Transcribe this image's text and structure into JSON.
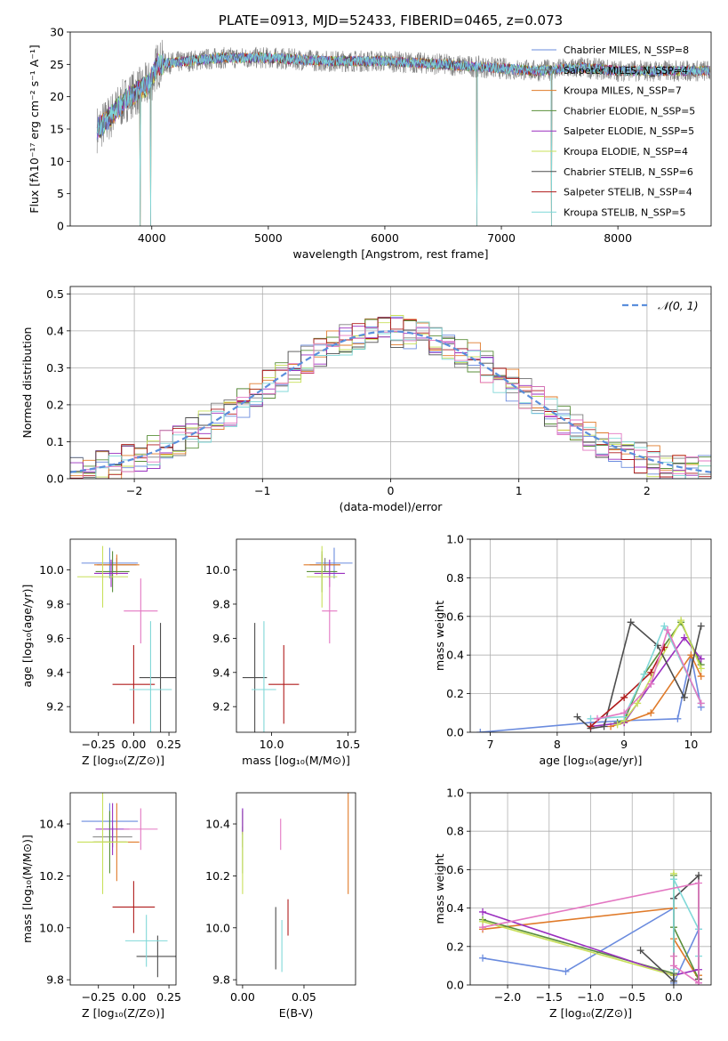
{
  "colors": {
    "chabrier_miles": "#6a8bde",
    "salpeter_miles": "#7f7f7f",
    "kroupa_miles": "#e07b2a",
    "chabrier_elodie": "#5a8f3a",
    "salpeter_elodie": "#9a2fbf",
    "kroupa_elodie": "#c8e05a",
    "chabrier_stelib": "#4d4d4d",
    "salpeter_stelib": "#b01c1c",
    "kroupa_stelib": "#80d8d8",
    "pink": "#e377c2",
    "gaussian": "#5b8fdc"
  },
  "chart_data": [
    {
      "id": "spectrum",
      "type": "line",
      "title": "PLATE=0913, MJD=52433, FIBERID=0465, z=0.073",
      "xlabel": "wavelength [Angstrom, rest frame]",
      "ylabel": "Flux [fλ10⁻¹⁷ erg cm⁻² s⁻¹ A⁻¹]",
      "xlim": [
        3300,
        8800
      ],
      "ylim": [
        0,
        30
      ],
      "xticks": [
        "4000",
        "5000",
        "6000",
        "7000",
        "8000"
      ],
      "yticks": [
        "0",
        "5",
        "10",
        "15",
        "20",
        "25",
        "30"
      ],
      "legend_position": "right",
      "legend": [
        "Chabrier MILES, N_SSP=8",
        "Salpeter MILES, N_SSP=4",
        "Kroupa MILES, N_SSP=7",
        "Chabrier ELODIE, N_SSP=5",
        "Salpeter ELODIE, N_SSP=5",
        "Kroupa ELODIE, N_SSP=4",
        "Chabrier STELIB, N_SSP=6",
        "Salpeter STELIB, N_SSP=4",
        "Kroupa STELIB, N_SSP=5"
      ],
      "continuum": [
        [
          3530,
          15
        ],
        [
          3600,
          16
        ],
        [
          3700,
          18
        ],
        [
          3800,
          20
        ],
        [
          3900,
          21
        ],
        [
          3980,
          22
        ],
        [
          4050,
          25
        ],
        [
          4300,
          25.5
        ],
        [
          4600,
          26
        ],
        [
          5000,
          26
        ],
        [
          5500,
          25.5
        ],
        [
          6000,
          25.5
        ],
        [
          6500,
          25
        ],
        [
          6900,
          24.5
        ],
        [
          7300,
          24
        ],
        [
          7700,
          24.5
        ],
        [
          8000,
          24
        ],
        [
          8300,
          24
        ],
        [
          8790,
          24
        ]
      ],
      "absorption_dips": [
        [
          3900,
          0
        ],
        [
          3990,
          0
        ],
        [
          6790,
          0
        ],
        [
          7430,
          0
        ]
      ]
    },
    {
      "id": "residuals",
      "type": "line",
      "xlabel": "(data-model)/error",
      "ylabel": "Normed distribution",
      "xlim": [
        -2.5,
        2.5
      ],
      "ylim": [
        0,
        0.52
      ],
      "xticks": [
        "−2",
        "−1",
        "0",
        "1",
        "2"
      ],
      "yticks": [
        "0.0",
        "0.1",
        "0.2",
        "0.3",
        "0.4",
        "0.5"
      ],
      "grid": true,
      "legend_position": "top-right",
      "legend": [
        "𝒩(0, 1)"
      ],
      "gaussian": {
        "mu": 0,
        "sigma": 1
      }
    },
    {
      "id": "age_vs_Z",
      "type": "scatter",
      "xlabel": "Z [log₁₀(Z/Z⊙)]",
      "ylabel": "age  [log₁₀(age/yr)]",
      "xlim": [
        -0.45,
        0.3
      ],
      "ylim": [
        9.05,
        10.18
      ],
      "xticks": [
        "−0.25",
        "0.00",
        "0.25"
      ],
      "yticks": [
        "9.2",
        "9.4",
        "9.6",
        "9.8",
        "10.0"
      ],
      "points": [
        {
          "x": -0.17,
          "y": 10.04,
          "ex": 0.2,
          "ey": 0.09,
          "c": "chabrier_miles"
        },
        {
          "x": -0.12,
          "y": 10.03,
          "ex": 0.14,
          "ey": 0.04,
          "c": "salpeter_miles"
        },
        {
          "x": -0.12,
          "y": 10.03,
          "ex": 0.16,
          "ey": 0.06,
          "c": "kroupa_miles"
        },
        {
          "x": -0.15,
          "y": 9.99,
          "ex": 0.12,
          "ey": 0.12,
          "c": "chabrier_elodie"
        },
        {
          "x": -0.16,
          "y": 9.98,
          "ex": 0.12,
          "ey": 0.08,
          "c": "salpeter_elodie"
        },
        {
          "x": -0.22,
          "y": 9.96,
          "ex": 0.18,
          "ey": 0.18,
          "c": "kroupa_elodie"
        },
        {
          "x": 0.19,
          "y": 9.37,
          "ex": 0.15,
          "ey": 0.32,
          "c": "chabrier_stelib"
        },
        {
          "x": 0.0,
          "y": 9.33,
          "ex": 0.15,
          "ey": 0.23,
          "c": "salpeter_stelib"
        },
        {
          "x": 0.12,
          "y": 9.3,
          "ex": 0.15,
          "ey": 0.4,
          "c": "kroupa_stelib"
        },
        {
          "x": 0.05,
          "y": 9.76,
          "ex": 0.12,
          "ey": 0.19,
          "c": "pink"
        }
      ]
    },
    {
      "id": "age_vs_mass",
      "type": "scatter",
      "xlabel": "mass [log₁₀(M/M⊙)]",
      "ylabel": "",
      "xlim": [
        9.77,
        10.55
      ],
      "ylim": [
        9.05,
        10.18
      ],
      "xticks": [
        "10.0",
        "10.5"
      ],
      "yticks": [
        "9.2",
        "9.4",
        "9.6",
        "9.8",
        "10.0"
      ],
      "points": [
        {
          "x": 10.41,
          "y": 10.04,
          "ex": 0.12,
          "ey": 0.09,
          "c": "chabrier_miles"
        },
        {
          "x": 10.35,
          "y": 10.03,
          "ex": 0.1,
          "ey": 0.04,
          "c": "salpeter_miles"
        },
        {
          "x": 10.33,
          "y": 10.03,
          "ex": 0.12,
          "ey": 0.06,
          "c": "kroupa_miles"
        },
        {
          "x": 10.33,
          "y": 9.99,
          "ex": 0.1,
          "ey": 0.12,
          "c": "chabrier_elodie"
        },
        {
          "x": 10.38,
          "y": 9.98,
          "ex": 0.1,
          "ey": 0.08,
          "c": "salpeter_elodie"
        },
        {
          "x": 10.33,
          "y": 9.96,
          "ex": 0.1,
          "ey": 0.18,
          "c": "kroupa_elodie"
        },
        {
          "x": 9.89,
          "y": 9.37,
          "ex": 0.08,
          "ey": 0.32,
          "c": "chabrier_stelib"
        },
        {
          "x": 10.08,
          "y": 9.33,
          "ex": 0.1,
          "ey": 0.23,
          "c": "salpeter_stelib"
        },
        {
          "x": 9.95,
          "y": 9.3,
          "ex": 0.08,
          "ey": 0.4,
          "c": "kroupa_stelib"
        },
        {
          "x": 10.38,
          "y": 9.76,
          "ex": 0.05,
          "ey": 0.19,
          "c": "pink"
        }
      ]
    },
    {
      "id": "mass_weight_vs_age",
      "type": "line",
      "xlabel": "age  [log₁₀(age/yr)]",
      "ylabel": "mass weight",
      "xlim": [
        6.7,
        10.3
      ],
      "ylim": [
        0,
        1.0
      ],
      "xticks": [
        "7",
        "8",
        "9",
        "10"
      ],
      "yticks": [
        "0.0",
        "0.2",
        "0.4",
        "0.6",
        "0.8",
        "1.0"
      ],
      "grid": true,
      "series": [
        {
          "c": "chabrier_miles",
          "x": [
            6.85,
            8.5,
            9.0,
            9.8,
            10.0,
            10.15
          ],
          "y": [
            0.0,
            0.05,
            0.06,
            0.07,
            0.4,
            0.13
          ]
        },
        {
          "c": "kroupa_miles",
          "x": [
            8.8,
            9.0,
            9.4,
            10.0,
            10.15
          ],
          "y": [
            0.03,
            0.05,
            0.1,
            0.4,
            0.29
          ]
        },
        {
          "c": "chabrier_elodie",
          "x": [
            8.9,
            9.0,
            9.3,
            9.85,
            10.15
          ],
          "y": [
            0.05,
            0.06,
            0.3,
            0.57,
            0.35
          ]
        },
        {
          "c": "salpeter_elodie",
          "x": [
            8.5,
            9.0,
            9.4,
            9.9,
            10.15
          ],
          "y": [
            0.03,
            0.05,
            0.25,
            0.49,
            0.38
          ]
        },
        {
          "c": "kroupa_elodie",
          "x": [
            8.9,
            9.0,
            9.2,
            9.85,
            10.15
          ],
          "y": [
            0.04,
            0.06,
            0.15,
            0.58,
            0.33
          ]
        },
        {
          "c": "chabrier_stelib",
          "x": [
            8.3,
            8.5,
            8.7,
            9.1,
            9.5,
            9.9,
            10.15
          ],
          "y": [
            0.08,
            0.02,
            0.03,
            0.57,
            0.45,
            0.18,
            0.55
          ]
        },
        {
          "c": "salpeter_stelib",
          "x": [
            8.5,
            9.0,
            9.4,
            9.6
          ],
          "y": [
            0.03,
            0.18,
            0.31,
            0.44
          ]
        },
        {
          "c": "kroupa_stelib",
          "x": [
            8.5,
            9.0,
            9.3,
            9.6,
            10.15
          ],
          "y": [
            0.07,
            0.08,
            0.3,
            0.55,
            0.15
          ]
        },
        {
          "c": "pink",
          "x": [
            8.6,
            9.0,
            9.4,
            9.65,
            10.15
          ],
          "y": [
            0.07,
            0.1,
            0.25,
            0.53,
            0.15
          ]
        }
      ]
    },
    {
      "id": "mass_vs_Z",
      "type": "scatter",
      "xlabel": "Z [log₁₀(Z/Z⊙)]",
      "ylabel": "mass [log₁₀(M/M⊙)]",
      "xlim": [
        -0.45,
        0.3
      ],
      "ylim": [
        9.78,
        10.52
      ],
      "xticks": [
        "−0.25",
        "0.00",
        "0.25"
      ],
      "yticks": [
        "9.8",
        "10.0",
        "10.2",
        "10.4"
      ],
      "points": [
        {
          "x": -0.17,
          "y": 10.41,
          "ex": 0.2,
          "ey": 0.07,
          "c": "chabrier_miles"
        },
        {
          "x": -0.15,
          "y": 10.35,
          "ex": 0.14,
          "ey": 0.04,
          "c": "salpeter_miles"
        },
        {
          "x": -0.12,
          "y": 10.33,
          "ex": 0.16,
          "ey": 0.15,
          "c": "kroupa_miles"
        },
        {
          "x": -0.17,
          "y": 10.33,
          "ex": 0.12,
          "ey": 0.12,
          "c": "chabrier_elodie"
        },
        {
          "x": -0.15,
          "y": 10.38,
          "ex": 0.12,
          "ey": 0.1,
          "c": "salpeter_elodie"
        },
        {
          "x": -0.22,
          "y": 10.33,
          "ex": 0.18,
          "ey": 0.2,
          "c": "kroupa_elodie"
        },
        {
          "x": 0.17,
          "y": 9.89,
          "ex": 0.15,
          "ey": 0.08,
          "c": "chabrier_stelib"
        },
        {
          "x": 0.0,
          "y": 10.08,
          "ex": 0.15,
          "ey": 0.1,
          "c": "salpeter_stelib"
        },
        {
          "x": 0.09,
          "y": 9.95,
          "ex": 0.15,
          "ey": 0.1,
          "c": "kroupa_stelib"
        },
        {
          "x": 0.05,
          "y": 10.38,
          "ex": 0.12,
          "ey": 0.08,
          "c": "pink"
        }
      ]
    },
    {
      "id": "mass_vs_ebv",
      "type": "scatter",
      "xlabel": "E(B-V)",
      "ylabel": "",
      "xlim": [
        -0.005,
        0.092
      ],
      "ylim": [
        9.78,
        10.52
      ],
      "xticks": [
        "0.00",
        "0.05"
      ],
      "yticks": [
        "9.8",
        "10.0",
        "10.2",
        "10.4"
      ],
      "points": [
        {
          "x": 0.0,
          "y": 10.41,
          "ex": 0,
          "ey": 0.05,
          "c": "chabrier_miles"
        },
        {
          "x": 0.0,
          "y": 10.35,
          "ex": 0,
          "ey": 0.04,
          "c": "salpeter_miles"
        },
        {
          "x": 0.086,
          "y": 10.33,
          "ex": 0,
          "ey": 0.2,
          "c": "kroupa_miles"
        },
        {
          "x": 0.0,
          "y": 10.33,
          "ex": 0,
          "ey": 0.12,
          "c": "chabrier_elodie"
        },
        {
          "x": 0.0,
          "y": 10.41,
          "ex": 0,
          "ey": 0.05,
          "c": "salpeter_elodie"
        },
        {
          "x": 0.0,
          "y": 10.25,
          "ex": 0,
          "ey": 0.12,
          "c": "kroupa_elodie"
        },
        {
          "x": 0.027,
          "y": 9.96,
          "ex": 0,
          "ey": 0.12,
          "c": "chabrier_stelib"
        },
        {
          "x": 0.037,
          "y": 10.04,
          "ex": 0,
          "ey": 0.07,
          "c": "salpeter_stelib"
        },
        {
          "x": 0.032,
          "y": 9.93,
          "ex": 0,
          "ey": 0.1,
          "c": "kroupa_stelib"
        },
        {
          "x": 0.031,
          "y": 10.36,
          "ex": 0,
          "ey": 0.06,
          "c": "pink"
        }
      ]
    },
    {
      "id": "mass_weight_vs_Z",
      "type": "line",
      "xlabel": "Z [log₁₀(Z/Z⊙)]",
      "ylabel": "mass weight",
      "xlim": [
        -2.45,
        0.45
      ],
      "ylim": [
        0,
        1.0
      ],
      "xticks": [
        "−2.0",
        "−1.5",
        "−1.0",
        "−0.5",
        "0.0"
      ],
      "yticks": [
        "0.0",
        "0.2",
        "0.4",
        "0.6",
        "0.8",
        "1.0"
      ],
      "grid": true,
      "series": [
        {
          "c": "chabrier_miles",
          "x": [
            -2.3,
            -1.3,
            0.0,
            0.0,
            0.0,
            0.3
          ],
          "y": [
            0.14,
            0.07,
            0.4,
            0.05,
            0.01,
            0.29
          ]
        },
        {
          "c": "kroupa_miles",
          "x": [
            -2.3,
            0.0,
            0.0,
            0.3,
            0.3
          ],
          "y": [
            0.29,
            0.4,
            0.24,
            0.03,
            0.05
          ]
        },
        {
          "c": "chabrier_elodie",
          "x": [
            -2.3,
            0.0,
            0.0,
            0.0,
            0.3
          ],
          "y": [
            0.34,
            0.06,
            0.57,
            0.3,
            0.03
          ]
        },
        {
          "c": "salpeter_elodie",
          "x": [
            -2.3,
            0.0,
            0.0,
            0.3,
            0.3
          ],
          "y": [
            0.38,
            0.05,
            0.05,
            0.08,
            0.01
          ]
        },
        {
          "c": "kroupa_elodie",
          "x": [
            -2.3,
            0.0,
            0.0,
            0.0
          ],
          "y": [
            0.33,
            0.05,
            0.58,
            0.15
          ]
        },
        {
          "c": "chabrier_stelib",
          "x": [
            -0.4,
            0.0,
            0.0,
            0.3,
            0.3
          ],
          "y": [
            0.18,
            0.02,
            0.45,
            0.57,
            0.03
          ]
        },
        {
          "c": "kroupa_stelib",
          "x": [
            0.0,
            0.0,
            0.3,
            0.3
          ],
          "y": [
            0.08,
            0.55,
            0.29,
            0.15
          ]
        },
        {
          "c": "pink",
          "x": [
            -2.3,
            0.3,
            0.3,
            0.0,
            0.0
          ],
          "y": [
            0.3,
            0.53,
            0.01,
            0.1,
            0.15
          ]
        }
      ]
    }
  ]
}
